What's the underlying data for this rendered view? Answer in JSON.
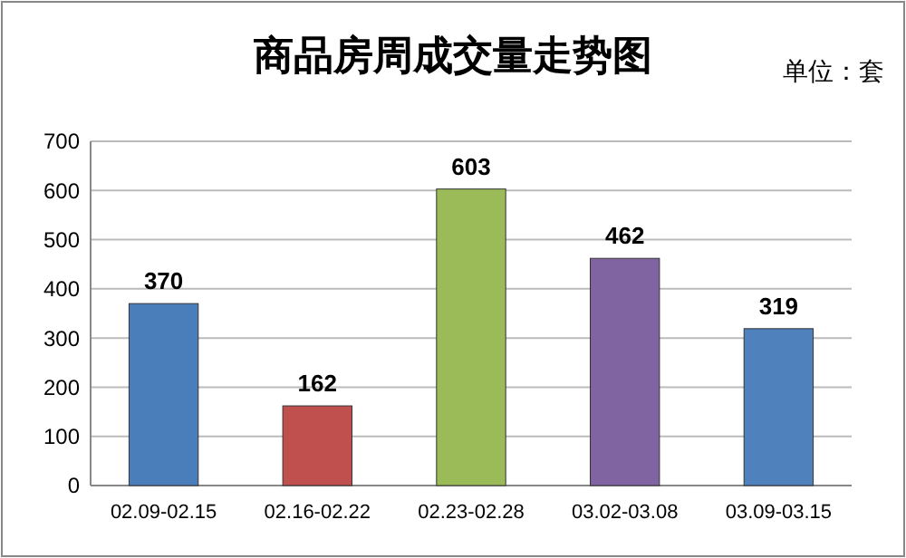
{
  "chart_data": {
    "type": "bar",
    "title": "商品房周成交量走势图",
    "annotations": [
      "单位：套"
    ],
    "categories": [
      "02.09-02.15",
      "02.16-02.22",
      "02.23-02.28",
      "03.02-03.08",
      "03.09-03.15"
    ],
    "values": [
      370,
      162,
      603,
      462,
      319
    ],
    "colors": [
      "#4a7ebb",
      "#c0504d",
      "#9bbb59",
      "#8064a2",
      "#4f81bd"
    ],
    "ylim": [
      0,
      700
    ],
    "yticks": [
      0,
      100,
      200,
      300,
      400,
      500,
      600,
      700
    ],
    "grid": "y",
    "data_labels": true
  }
}
